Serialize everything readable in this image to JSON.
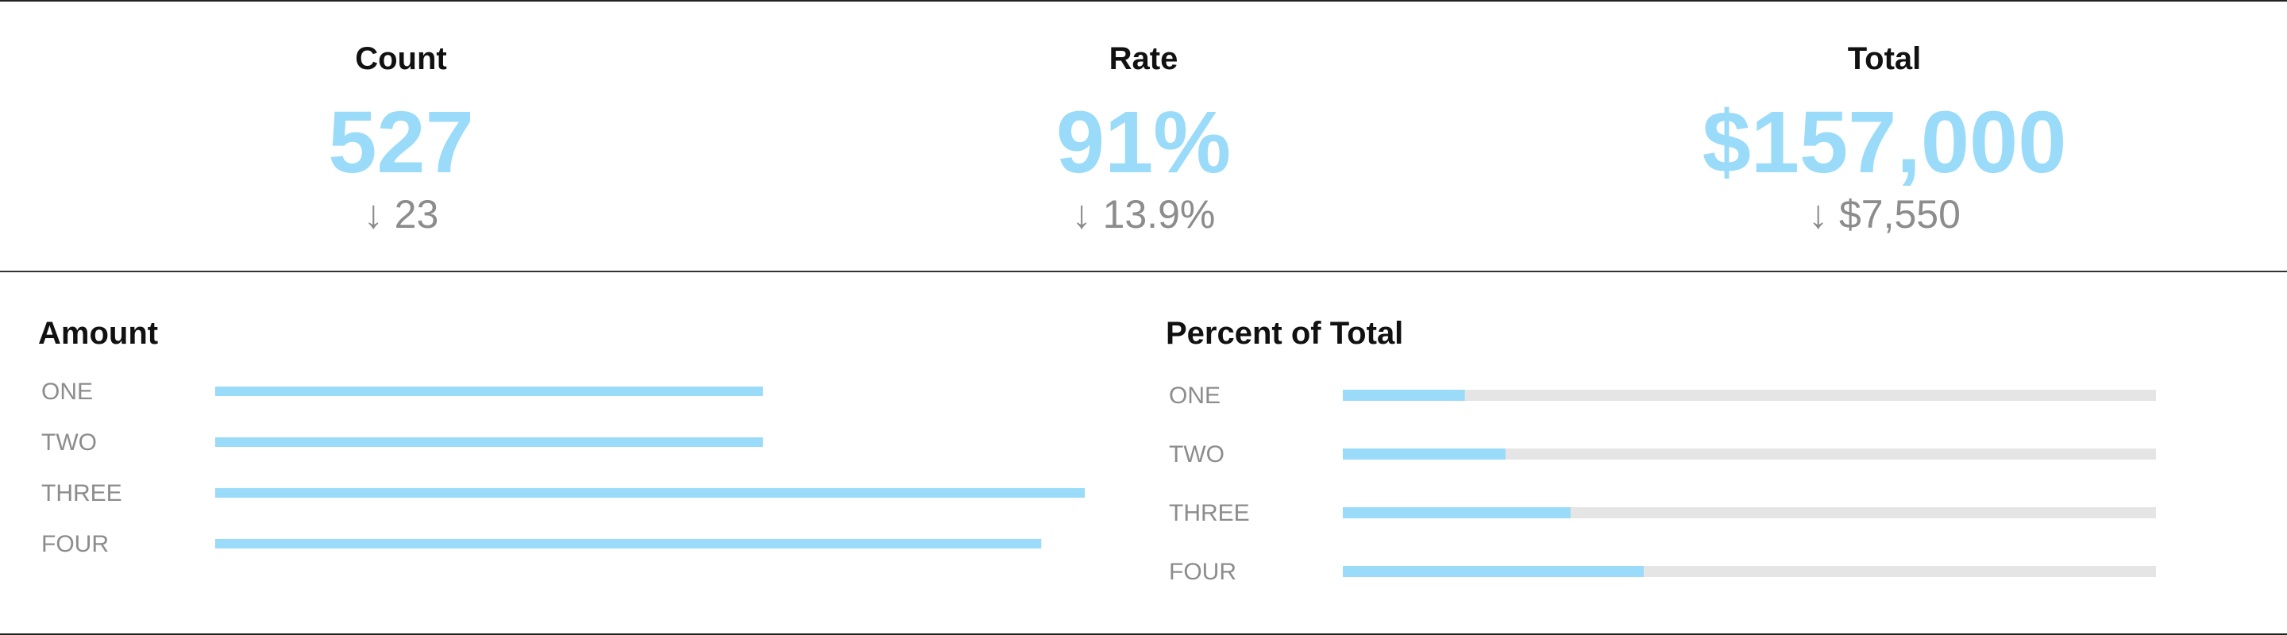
{
  "kpis": [
    {
      "label": "Count",
      "value": "527",
      "delta_arrow": "↓",
      "delta": "23"
    },
    {
      "label": "Rate",
      "value": "91%",
      "delta_arrow": "↓",
      "delta": "13.9%"
    },
    {
      "label": "Total",
      "value": "$157,000",
      "delta_arrow": "↓",
      "delta": "$7,550"
    }
  ],
  "colors": {
    "accent": "#99dbf9",
    "track": "#e5e5e5",
    "muted": "#8c8c8c",
    "text": "#111111"
  },
  "chart_data": [
    {
      "type": "bar",
      "orientation": "horizontal",
      "title": "Amount",
      "categories": [
        "ONE",
        "TWO",
        "THREE",
        "FOUR"
      ],
      "values": [
        63,
        63,
        100,
        95
      ],
      "xlim": [
        0,
        100
      ],
      "grid": false,
      "legend": "none"
    },
    {
      "type": "bar",
      "orientation": "horizontal",
      "title": "Percent of Total",
      "categories": [
        "ONE",
        "TWO",
        "THREE",
        "FOUR"
      ],
      "values": [
        15,
        20,
        28,
        37
      ],
      "xlim": [
        0,
        100
      ],
      "grid": false,
      "legend": "none"
    }
  ]
}
